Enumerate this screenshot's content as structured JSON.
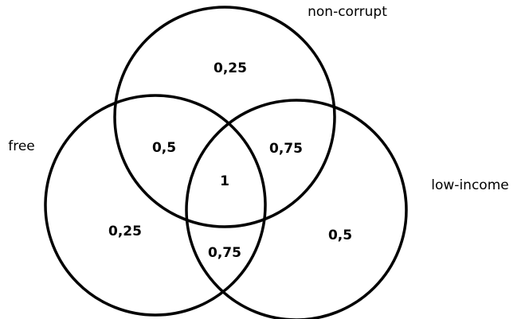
{
  "sets": [
    {
      "label": "non-corrupt"
    },
    {
      "label": "free"
    },
    {
      "label": "low-income"
    }
  ],
  "regions": [
    {
      "label": "0,25"
    },
    {
      "label": "0,5"
    },
    {
      "label": "0,75"
    },
    {
      "label": "1"
    },
    {
      "label": "0,25"
    },
    {
      "label": "0,5"
    },
    {
      "label": "0,75"
    }
  ]
}
